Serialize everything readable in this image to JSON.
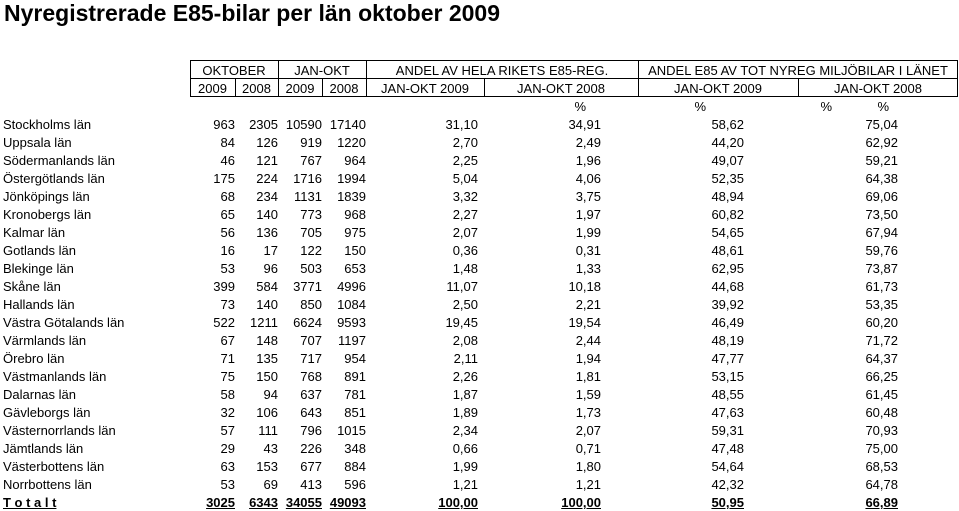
{
  "title": "Nyregistrerade E85-bilar per län oktober 2009",
  "header": {
    "groups": [
      "OKTOBER",
      "JAN-OKT",
      "ANDEL AV HELA RIKETS E85-REG.",
      "ANDEL E85 AV TOT NYREG MILJÖBILAR I LÄNET"
    ],
    "years": [
      "2009",
      "2008",
      "2009",
      "2008",
      "JAN-OKT 2009",
      "JAN-OKT 2008",
      "JAN-OKT 2009",
      "JAN-OKT 2008"
    ],
    "units": [
      "%",
      "%",
      "%",
      "%"
    ]
  },
  "rows": [
    {
      "lan": "Stockholms län",
      "okt09": "963",
      "okt08": "2305",
      "jo09": "10590",
      "jo08": "17140",
      "andel09": "31,10",
      "andel08": "34,91",
      "miljo09": "58,62",
      "miljo08": "75,04"
    },
    {
      "lan": "Uppsala län",
      "okt09": "84",
      "okt08": "126",
      "jo09": "919",
      "jo08": "1220",
      "andel09": "2,70",
      "andel08": "2,49",
      "miljo09": "44,20",
      "miljo08": "62,92"
    },
    {
      "lan": "Södermanlands län",
      "okt09": "46",
      "okt08": "121",
      "jo09": "767",
      "jo08": "964",
      "andel09": "2,25",
      "andel08": "1,96",
      "miljo09": "49,07",
      "miljo08": "59,21"
    },
    {
      "lan": "Östergötlands län",
      "okt09": "175",
      "okt08": "224",
      "jo09": "1716",
      "jo08": "1994",
      "andel09": "5,04",
      "andel08": "4,06",
      "miljo09": "52,35",
      "miljo08": "64,38"
    },
    {
      "lan": "Jönköpings län",
      "okt09": "68",
      "okt08": "234",
      "jo09": "1131",
      "jo08": "1839",
      "andel09": "3,32",
      "andel08": "3,75",
      "miljo09": "48,94",
      "miljo08": "69,06"
    },
    {
      "lan": "Kronobergs län",
      "okt09": "65",
      "okt08": "140",
      "jo09": "773",
      "jo08": "968",
      "andel09": "2,27",
      "andel08": "1,97",
      "miljo09": "60,82",
      "miljo08": "73,50"
    },
    {
      "lan": "Kalmar län",
      "okt09": "56",
      "okt08": "136",
      "jo09": "705",
      "jo08": "975",
      "andel09": "2,07",
      "andel08": "1,99",
      "miljo09": "54,65",
      "miljo08": "67,94"
    },
    {
      "lan": "Gotlands län",
      "okt09": "16",
      "okt08": "17",
      "jo09": "122",
      "jo08": "150",
      "andel09": "0,36",
      "andel08": "0,31",
      "miljo09": "48,61",
      "miljo08": "59,76"
    },
    {
      "lan": "Blekinge län",
      "okt09": "53",
      "okt08": "96",
      "jo09": "503",
      "jo08": "653",
      "andel09": "1,48",
      "andel08": "1,33",
      "miljo09": "62,95",
      "miljo08": "73,87"
    },
    {
      "lan": "Skåne län",
      "okt09": "399",
      "okt08": "584",
      "jo09": "3771",
      "jo08": "4996",
      "andel09": "11,07",
      "andel08": "10,18",
      "miljo09": "44,68",
      "miljo08": "61,73"
    },
    {
      "lan": "Hallands län",
      "okt09": "73",
      "okt08": "140",
      "jo09": "850",
      "jo08": "1084",
      "andel09": "2,50",
      "andel08": "2,21",
      "miljo09": "39,92",
      "miljo08": "53,35"
    },
    {
      "lan": "Västra Götalands län",
      "okt09": "522",
      "okt08": "1211",
      "jo09": "6624",
      "jo08": "9593",
      "andel09": "19,45",
      "andel08": "19,54",
      "miljo09": "46,49",
      "miljo08": "60,20"
    },
    {
      "lan": "Värmlands län",
      "okt09": "67",
      "okt08": "148",
      "jo09": "707",
      "jo08": "1197",
      "andel09": "2,08",
      "andel08": "2,44",
      "miljo09": "48,19",
      "miljo08": "71,72"
    },
    {
      "lan": "Örebro län",
      "okt09": "71",
      "okt08": "135",
      "jo09": "717",
      "jo08": "954",
      "andel09": "2,11",
      "andel08": "1,94",
      "miljo09": "47,77",
      "miljo08": "64,37"
    },
    {
      "lan": "Västmanlands län",
      "okt09": "75",
      "okt08": "150",
      "jo09": "768",
      "jo08": "891",
      "andel09": "2,26",
      "andel08": "1,81",
      "miljo09": "53,15",
      "miljo08": "66,25"
    },
    {
      "lan": "Dalarnas län",
      "okt09": "58",
      "okt08": "94",
      "jo09": "637",
      "jo08": "781",
      "andel09": "1,87",
      "andel08": "1,59",
      "miljo09": "48,55",
      "miljo08": "61,45"
    },
    {
      "lan": "Gävleborgs län",
      "okt09": "32",
      "okt08": "106",
      "jo09": "643",
      "jo08": "851",
      "andel09": "1,89",
      "andel08": "1,73",
      "miljo09": "47,63",
      "miljo08": "60,48"
    },
    {
      "lan": "Västernorrlands län",
      "okt09": "57",
      "okt08": "111",
      "jo09": "796",
      "jo08": "1015",
      "andel09": "2,34",
      "andel08": "2,07",
      "miljo09": "59,31",
      "miljo08": "70,93"
    },
    {
      "lan": "Jämtlands län",
      "okt09": "29",
      "okt08": "43",
      "jo09": "226",
      "jo08": "348",
      "andel09": "0,66",
      "andel08": "0,71",
      "miljo09": "47,48",
      "miljo08": "75,00"
    },
    {
      "lan": "Västerbottens län",
      "okt09": "63",
      "okt08": "153",
      "jo09": "677",
      "jo08": "884",
      "andel09": "1,99",
      "andel08": "1,80",
      "miljo09": "54,64",
      "miljo08": "68,53"
    },
    {
      "lan": "Norrbottens län",
      "okt09": "53",
      "okt08": "69",
      "jo09": "413",
      "jo08": "596",
      "andel09": "1,21",
      "andel08": "1,21",
      "miljo09": "42,32",
      "miljo08": "64,78"
    }
  ],
  "total": {
    "lan": "T o t a l t",
    "okt09": "3025",
    "okt08": "6343",
    "jo09": "34055",
    "jo08": "49093",
    "andel09": "100,00",
    "andel08": "100,00",
    "miljo09": "50,95",
    "miljo08": "66,89"
  }
}
